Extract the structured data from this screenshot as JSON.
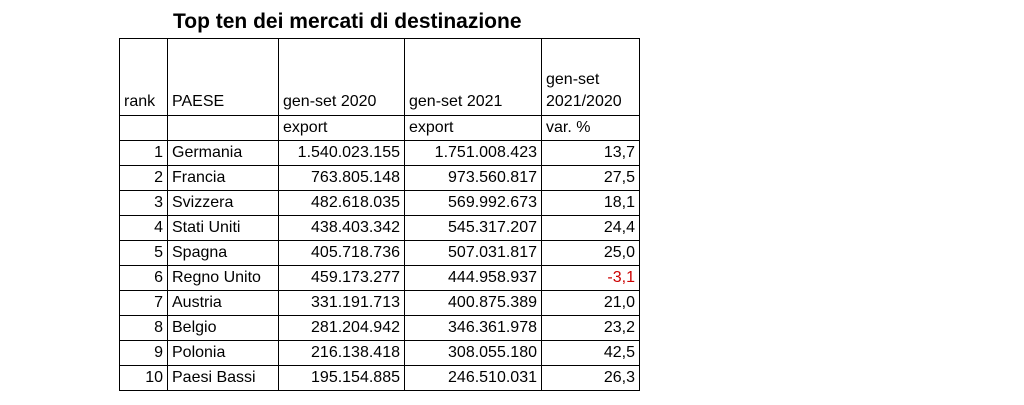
{
  "title": "Top ten dei mercati di destinazione",
  "headers": {
    "rank": "rank",
    "country": "PAESE",
    "y2020": "gen-set 2020",
    "y2021": "gen-set 2021",
    "var_line1": "gen-set",
    "var_line2": "2021/2020"
  },
  "subheaders": {
    "y2020": "export",
    "y2021": "export",
    "var": "var. %"
  },
  "colors": {
    "negative": "#cc0000"
  },
  "rows": [
    {
      "rank": "1",
      "country": "Germania",
      "y2020": "1.540.023.155",
      "y2021": "1.751.008.423",
      "var": "13,7"
    },
    {
      "rank": "2",
      "country": "Francia",
      "y2020": "763.805.148",
      "y2021": "973.560.817",
      "var": "27,5"
    },
    {
      "rank": "3",
      "country": "Svizzera",
      "y2020": "482.618.035",
      "y2021": "569.992.673",
      "var": "18,1"
    },
    {
      "rank": "4",
      "country": "Stati Uniti",
      "y2020": "438.403.342",
      "y2021": "545.317.207",
      "var": "24,4"
    },
    {
      "rank": "5",
      "country": "Spagna",
      "y2020": "405.718.736",
      "y2021": "507.031.817",
      "var": "25,0"
    },
    {
      "rank": "6",
      "country": "Regno Unito",
      "y2020": "459.173.277",
      "y2021": "444.958.937",
      "var": "-3,1"
    },
    {
      "rank": "7",
      "country": "Austria",
      "y2020": "331.191.713",
      "y2021": "400.875.389",
      "var": "21,0"
    },
    {
      "rank": "8",
      "country": "Belgio",
      "y2020": "281.204.942",
      "y2021": "346.361.978",
      "var": "23,2"
    },
    {
      "rank": "9",
      "country": "Polonia",
      "y2020": "216.138.418",
      "y2021": "308.055.180",
      "var": "42,5"
    },
    {
      "rank": "10",
      "country": "Paesi Bassi",
      "y2020": "195.154.885",
      "y2021": "246.510.031",
      "var": "26,3"
    }
  ]
}
